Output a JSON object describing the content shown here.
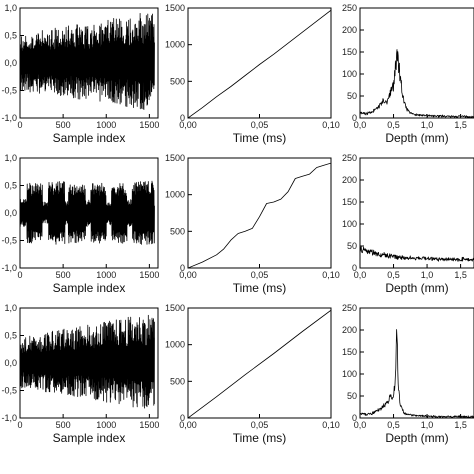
{
  "chart_data": [
    {
      "id": "r1c1",
      "type": "line",
      "signal": "dense_oscillation",
      "x": {
        "min": 0,
        "max": 1600,
        "ticks": [
          0,
          500,
          1000,
          1500
        ],
        "ticklabels": [
          "0",
          "500",
          "1000",
          "1500"
        ]
      },
      "y": {
        "min": -1.0,
        "max": 1.0,
        "ticks": [
          -1.0,
          -0.5,
          0.0,
          0.5,
          1.0
        ],
        "ticklabels": [
          "-1,0",
          "-0,5",
          "0,0",
          "0,5",
          "1,0"
        ]
      },
      "xlabel": "Sample index",
      "envelope": {
        "x": [
          0,
          400,
          800,
          1200,
          1550
        ],
        "upper": [
          0.5,
          0.65,
          0.72,
          0.85,
          0.95
        ],
        "lower": [
          -0.5,
          -0.6,
          -0.68,
          -0.8,
          -0.9
        ]
      }
    },
    {
      "id": "r1c2",
      "type": "line",
      "signal": "curve",
      "x": {
        "min": 0,
        "max": 0.1,
        "ticks": [
          0,
          0.05,
          0.1
        ],
        "ticklabels": [
          "0,00",
          "0,05",
          "0,10"
        ]
      },
      "y": {
        "min": 0,
        "max": 1500,
        "ticks": [
          0,
          500,
          1000,
          1500
        ],
        "ticklabels": [
          "0",
          "500",
          "1000",
          "1500"
        ]
      },
      "xlabel": "Time (ms)",
      "points": {
        "x": [
          0,
          0.01,
          0.02,
          0.03,
          0.04,
          0.05,
          0.06,
          0.07,
          0.08,
          0.09,
          0.1
        ],
        "y": [
          0,
          140,
          290,
          430,
          580,
          730,
          870,
          1020,
          1170,
          1320,
          1470
        ]
      }
    },
    {
      "id": "r1c3",
      "type": "line",
      "signal": "spectrum",
      "x": {
        "min": 0,
        "max": 1.7,
        "ticks": [
          0,
          0.5,
          1.0,
          1.5
        ],
        "ticklabels": [
          "0,0",
          "0,5",
          "1,0",
          "1,5"
        ]
      },
      "y": {
        "min": 0,
        "max": 250,
        "ticks": [
          0,
          50,
          100,
          150,
          200,
          250
        ],
        "ticklabels": [
          "0",
          "50",
          "100",
          "150",
          "200",
          "250"
        ]
      },
      "xlabel": "Depth (mm)",
      "points": {
        "x": [
          0,
          0.1,
          0.2,
          0.3,
          0.35,
          0.4,
          0.45,
          0.5,
          0.55,
          0.6,
          0.65,
          0.7,
          0.8,
          1.0,
          1.3,
          1.7
        ],
        "y": [
          12,
          10,
          15,
          30,
          40,
          35,
          55,
          75,
          145,
          95,
          40,
          18,
          8,
          5,
          4,
          3
        ]
      }
    },
    {
      "id": "r2c1",
      "type": "line",
      "signal": "bursts",
      "x": {
        "min": 0,
        "max": 1600,
        "ticks": [
          0,
          500,
          1000,
          1500
        ],
        "ticklabels": [
          "0",
          "500",
          "1000",
          "1500"
        ]
      },
      "y": {
        "min": -1.0,
        "max": 1.0,
        "ticks": [
          -1.0,
          -0.5,
          0.0,
          0.5,
          1.0
        ],
        "ticklabels": [
          "-1,0",
          "-0,5",
          "0,0",
          "0,5",
          "1,0"
        ]
      },
      "xlabel": "Sample index",
      "bursts": [
        [
          0,
          80,
          0.25
        ],
        [
          80,
          260,
          0.55
        ],
        [
          260,
          330,
          0.2
        ],
        [
          330,
          520,
          0.58
        ],
        [
          520,
          560,
          0.22
        ],
        [
          560,
          760,
          0.55
        ],
        [
          760,
          820,
          0.25
        ],
        [
          820,
          1000,
          0.55
        ],
        [
          1000,
          1060,
          0.22
        ],
        [
          1060,
          1240,
          0.55
        ],
        [
          1240,
          1300,
          0.25
        ],
        [
          1300,
          1560,
          0.58
        ]
      ]
    },
    {
      "id": "r2c2",
      "type": "line",
      "signal": "curve",
      "x": {
        "min": 0,
        "max": 0.1,
        "ticks": [
          0,
          0.05,
          0.1
        ],
        "ticklabels": [
          "0,00",
          "0,05",
          "0,10"
        ]
      },
      "y": {
        "min": 0,
        "max": 1500,
        "ticks": [
          0,
          500,
          1000,
          1500
        ],
        "ticklabels": [
          "0",
          "500",
          "1000",
          "1500"
        ]
      },
      "xlabel": "Time (ms)",
      "points": {
        "x": [
          0,
          0.01,
          0.02,
          0.025,
          0.03,
          0.035,
          0.04,
          0.045,
          0.05,
          0.055,
          0.06,
          0.065,
          0.07,
          0.075,
          0.08,
          0.085,
          0.09,
          0.095,
          0.1
        ],
        "y": [
          0,
          80,
          180,
          260,
          380,
          470,
          500,
          540,
          700,
          880,
          900,
          940,
          1040,
          1220,
          1250,
          1280,
          1370,
          1400,
          1430
        ]
      }
    },
    {
      "id": "r2c3",
      "type": "line",
      "signal": "spectrum",
      "x": {
        "min": 0,
        "max": 1.7,
        "ticks": [
          0,
          0.5,
          1.0,
          1.5
        ],
        "ticklabels": [
          "0,0",
          "0,5",
          "1,0",
          "1,5"
        ]
      },
      "y": {
        "min": 0,
        "max": 250,
        "ticks": [
          0,
          50,
          100,
          150,
          200,
          250
        ],
        "ticklabels": [
          "0",
          "50",
          "100",
          "150",
          "200",
          "250"
        ]
      },
      "xlabel": "Depth (mm)",
      "points": {
        "x": [
          0,
          0.05,
          0.1,
          0.2,
          0.3,
          0.4,
          0.5,
          0.6,
          0.8,
          1.0,
          1.2,
          1.4,
          1.7
        ],
        "y": [
          40,
          42,
          38,
          35,
          30,
          28,
          26,
          24,
          22,
          21,
          20,
          20,
          19
        ]
      }
    },
    {
      "id": "r3c1",
      "type": "line",
      "signal": "dense_oscillation",
      "x": {
        "min": 0,
        "max": 1600,
        "ticks": [
          0,
          500,
          1000,
          1500
        ],
        "ticklabels": [
          "0",
          "500",
          "1000",
          "1500"
        ]
      },
      "y": {
        "min": -1.0,
        "max": 1.0,
        "ticks": [
          -1.0,
          -0.5,
          0.0,
          0.5,
          1.0
        ],
        "ticklabels": [
          "-1,0",
          "-0,5",
          "0,0",
          "0,5",
          "1,0"
        ]
      },
      "xlabel": "Sample index",
      "envelope": {
        "x": [
          0,
          400,
          800,
          1200,
          1550
        ],
        "upper": [
          0.45,
          0.6,
          0.7,
          0.82,
          0.93
        ],
        "lower": [
          -0.45,
          -0.55,
          -0.65,
          -0.78,
          -0.88
        ]
      }
    },
    {
      "id": "r3c2",
      "type": "line",
      "signal": "curve",
      "x": {
        "min": 0,
        "max": 0.1,
        "ticks": [
          0,
          0.05,
          0.1
        ],
        "ticklabels": [
          "0,00",
          "0,05",
          "0,10"
        ]
      },
      "y": {
        "min": 0,
        "max": 1500,
        "ticks": [
          0,
          500,
          1000,
          1500
        ],
        "ticklabels": [
          "0",
          "500",
          "1000",
          "1500"
        ]
      },
      "xlabel": "Time (ms)",
      "points": {
        "x": [
          0,
          0.02,
          0.04,
          0.06,
          0.08,
          0.1
        ],
        "y": [
          0,
          290,
          590,
          880,
          1180,
          1470
        ]
      }
    },
    {
      "id": "r3c3",
      "type": "line",
      "signal": "spectrum",
      "x": {
        "min": 0,
        "max": 1.7,
        "ticks": [
          0,
          0.5,
          1.0,
          1.5
        ],
        "ticklabels": [
          "0,0",
          "0,5",
          "1,0",
          "1,5"
        ]
      },
      "y": {
        "min": 0,
        "max": 250,
        "ticks": [
          0,
          50,
          100,
          150,
          200,
          250
        ],
        "ticklabels": [
          "0",
          "50",
          "100",
          "150",
          "200",
          "250"
        ]
      },
      "xlabel": "Depth (mm)",
      "points": {
        "x": [
          0,
          0.1,
          0.2,
          0.3,
          0.4,
          0.45,
          0.5,
          0.53,
          0.55,
          0.57,
          0.6,
          0.65,
          0.7,
          0.8,
          1.0,
          1.3,
          1.7
        ],
        "y": [
          10,
          8,
          12,
          20,
          35,
          45,
          50,
          90,
          215,
          70,
          30,
          12,
          8,
          6,
          4,
          3,
          3
        ]
      }
    }
  ]
}
